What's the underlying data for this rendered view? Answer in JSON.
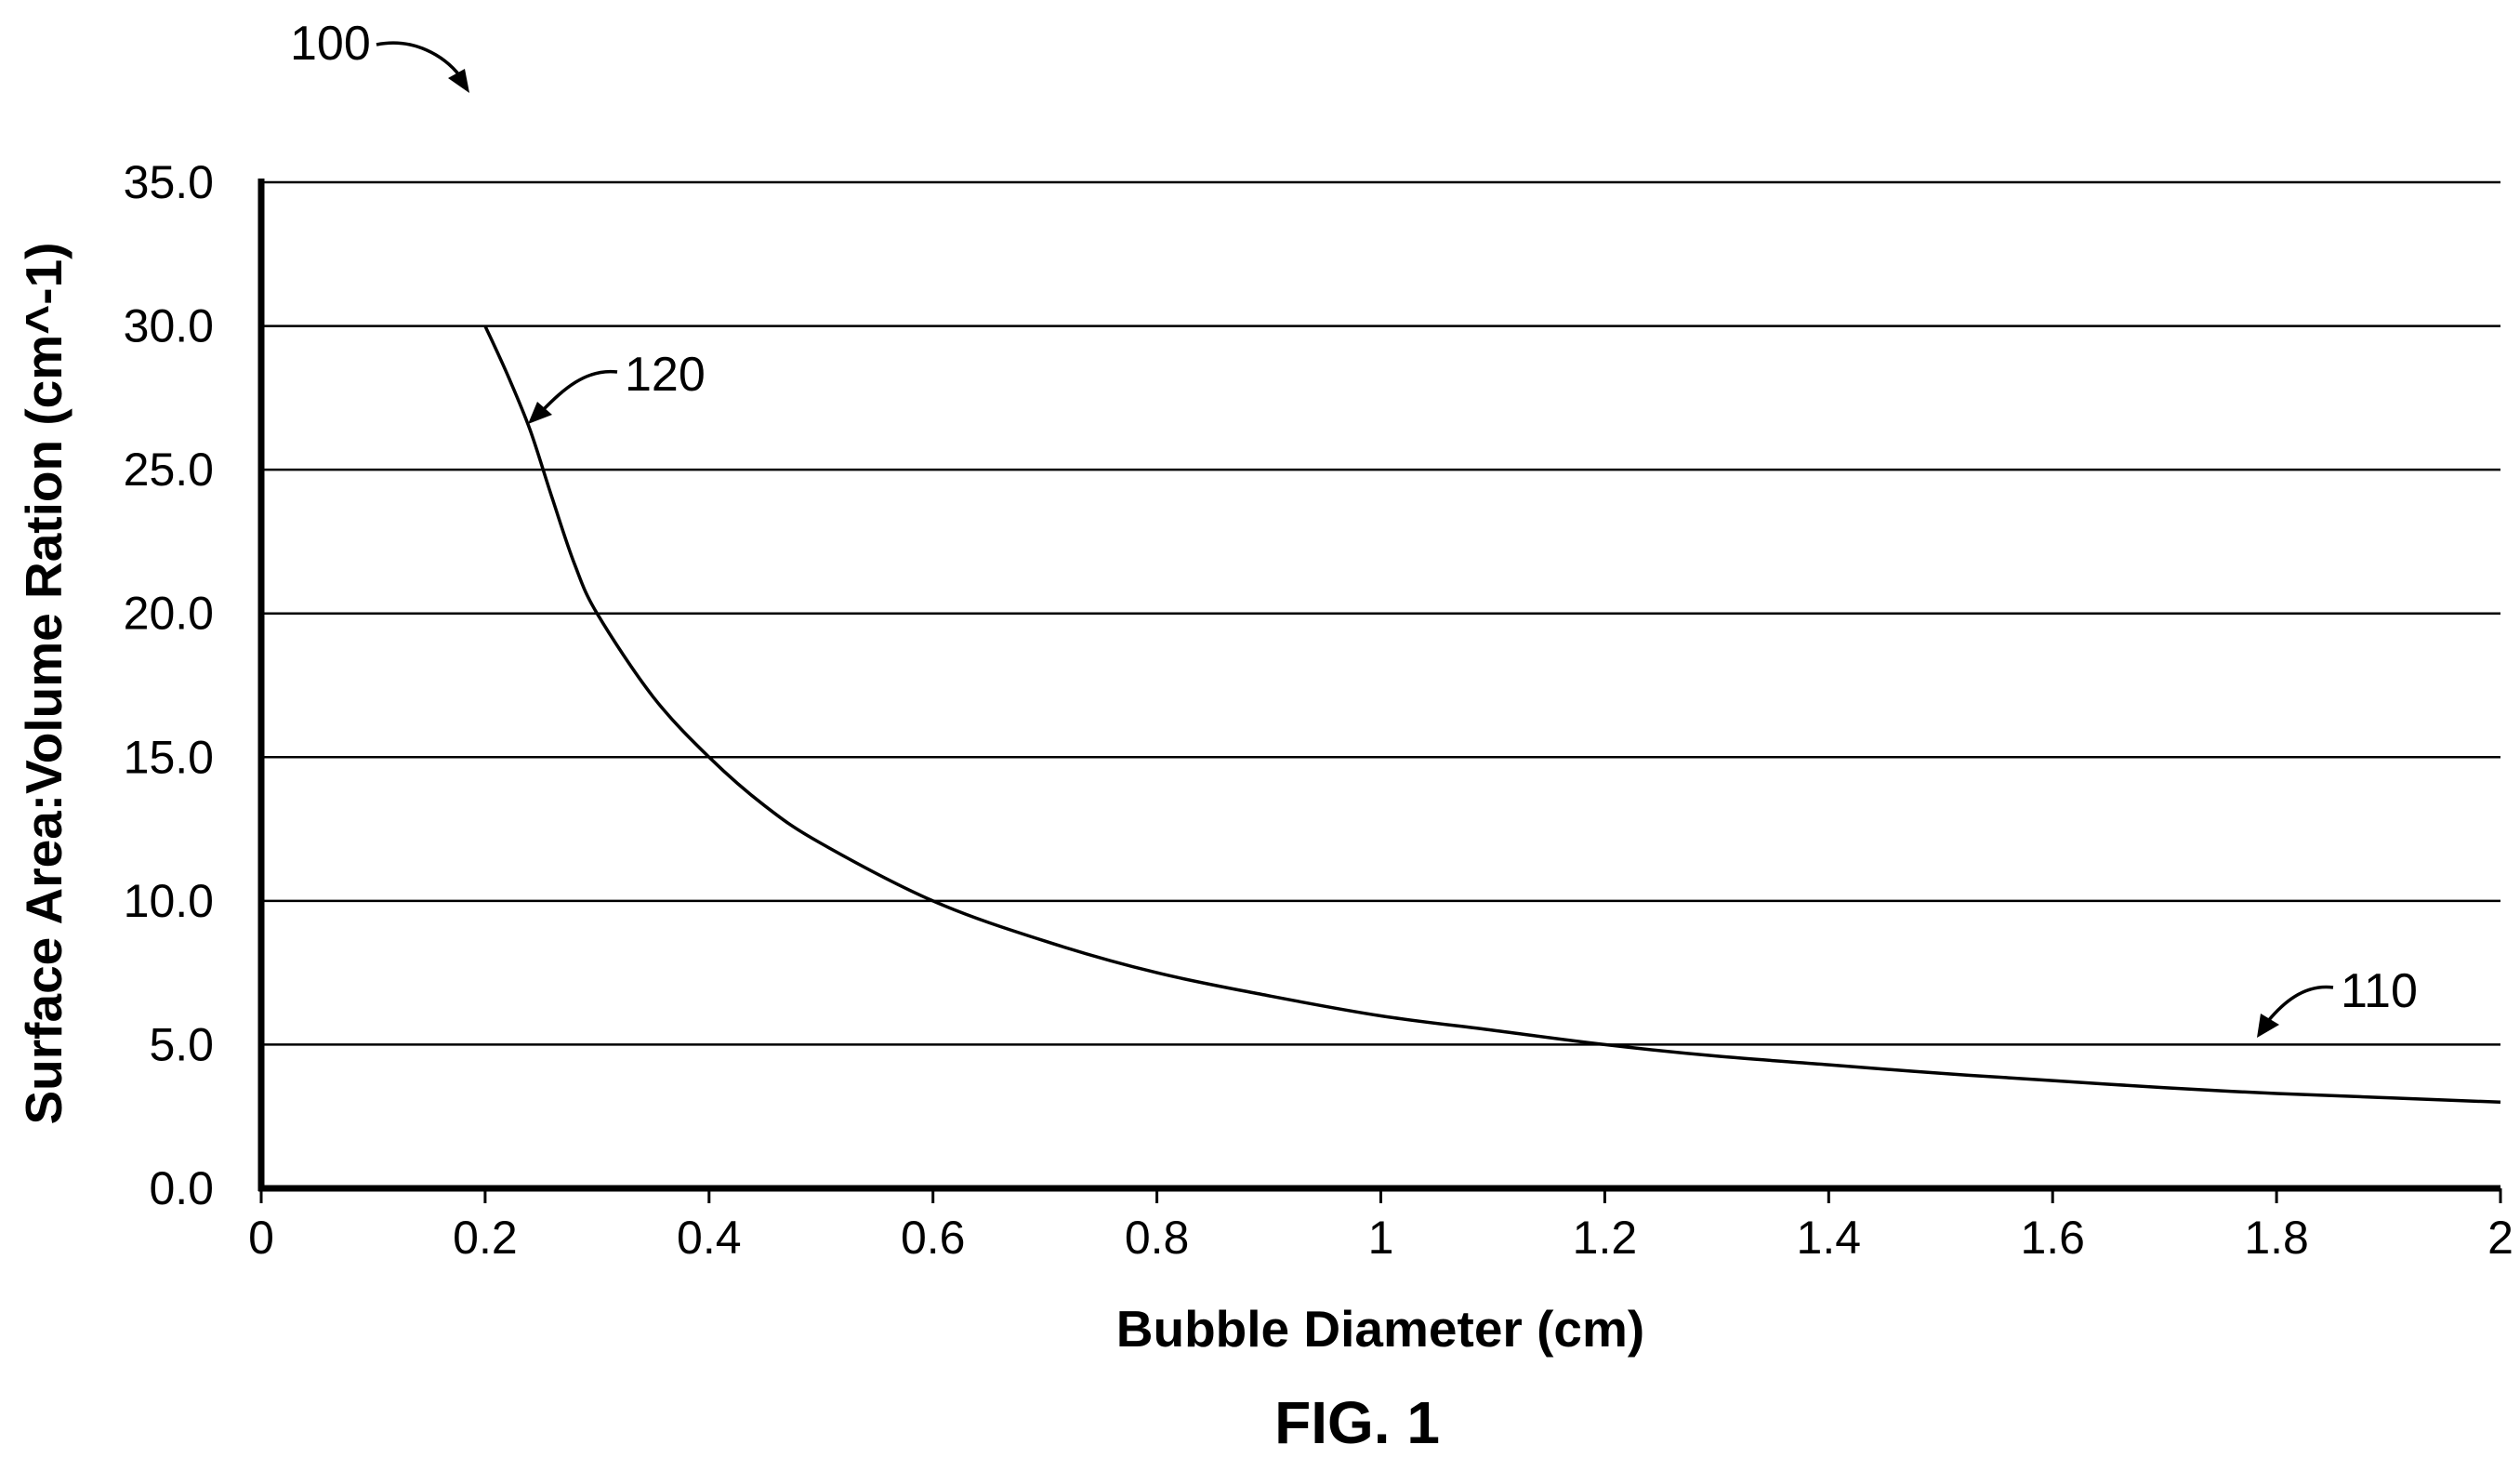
{
  "chart_data": {
    "type": "line",
    "title": "",
    "xlabel": "Bubble Diameter (cm)",
    "ylabel": "Surface Area:Volume Ration (cm^-1)",
    "xlim": [
      0,
      2
    ],
    "ylim": [
      0,
      35
    ],
    "x_ticks": [
      "0",
      "0.2",
      "0.4",
      "0.6",
      "0.8",
      "1",
      "1.2",
      "1.4",
      "1.6",
      "1.8",
      "2"
    ],
    "y_ticks": [
      "0.0",
      "5.0",
      "10.0",
      "15.0",
      "20.0",
      "25.0",
      "30.0",
      "35.0"
    ],
    "grid": "horizontal",
    "series": [
      {
        "x": [
          0.2,
          0.22,
          0.24,
          0.26,
          0.28,
          0.3,
          0.35,
          0.4,
          0.45,
          0.5,
          0.6,
          0.7,
          0.8,
          0.9,
          1.0,
          1.1,
          1.2,
          1.3,
          1.4,
          1.5,
          1.6,
          1.7,
          1.8,
          1.9,
          2.0
        ],
        "values": [
          30.0,
          28.3,
          26.4,
          24.0,
          21.7,
          20.0,
          17.1,
          15.0,
          13.3,
          12.0,
          10.0,
          8.6,
          7.5,
          6.7,
          6.0,
          5.5,
          5.0,
          4.6,
          4.3,
          4.0,
          3.75,
          3.5,
          3.3,
          3.15,
          3.0
        ]
      }
    ]
  },
  "figure": {
    "label": "FIG. 1",
    "ref_chart": "100",
    "ref_curve_top": "120",
    "ref_curve_tail": "110"
  }
}
